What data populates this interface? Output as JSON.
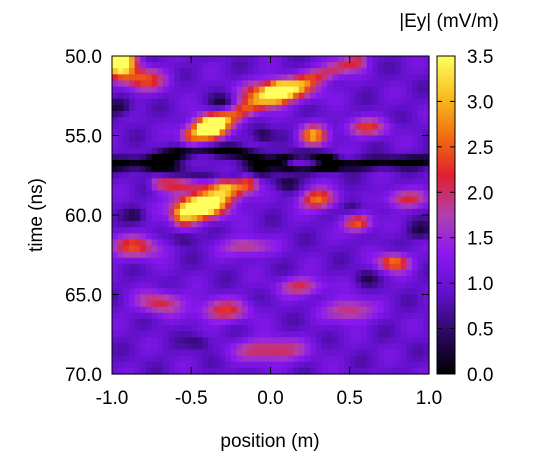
{
  "chart_data": {
    "type": "heatmap",
    "title": "",
    "xlabel": "position (m)",
    "ylabel": "time (ns)",
    "colorbar_label": "|Ey| (mV/m)",
    "xlim": [
      -1.0,
      1.0
    ],
    "ylim": [
      50.0,
      70.0
    ],
    "y_inverted": true,
    "x_ticks": [
      "-1.0",
      "-0.5",
      "0.0",
      "0.5",
      "1.0"
    ],
    "y_ticks": [
      "50.0",
      "55.0",
      "60.0",
      "65.0",
      "70.0"
    ],
    "zlim": [
      0.0,
      3.5
    ],
    "z_ticks": [
      "0.0",
      "0.5",
      "1.0",
      "1.5",
      "2.0",
      "2.5",
      "3.0",
      "3.5"
    ],
    "colormap": [
      "#000000",
      "#2a0860",
      "#6010c8",
      "#8a18f0",
      "#b040b0",
      "#e02030",
      "#f07010",
      "#f8c020",
      "#ffff60"
    ],
    "grid": false,
    "features": [
      {
        "shape": "gaussian",
        "x": -0.95,
        "y": 50.3,
        "sx": 0.07,
        "sy": 0.7,
        "z": 3.3
      },
      {
        "shape": "band",
        "x0": -0.5,
        "y0": 55.0,
        "x1": 0.05,
        "y1": 52.3,
        "width": 0.45,
        "z": 1.55
      },
      {
        "shape": "band",
        "x0": 0.05,
        "y0": 52.3,
        "x1": 0.55,
        "y1": 50.3,
        "width": 0.4,
        "z": 1.2
      },
      {
        "shape": "band",
        "x0": -0.55,
        "y0": 60.0,
        "x1": -0.15,
        "y1": 58.0,
        "width": 0.5,
        "z": 1.75
      },
      {
        "shape": "gaussian",
        "x": -0.38,
        "y": 54.5,
        "sx": 0.07,
        "sy": 0.55,
        "z": 2.4
      },
      {
        "shape": "gaussian",
        "x": -0.45,
        "y": 59.5,
        "sx": 0.12,
        "sy": 0.55,
        "z": 2.0
      },
      {
        "shape": "gaussian",
        "x": 0.27,
        "y": 55.0,
        "sx": 0.06,
        "sy": 0.45,
        "z": 1.9
      },
      {
        "shape": "gaussian",
        "x": 0.05,
        "y": 52.2,
        "sx": 0.15,
        "sy": 0.5,
        "z": 1.7
      },
      {
        "shape": "gaussian",
        "x": 0.3,
        "y": 59.0,
        "sx": 0.08,
        "sy": 0.45,
        "z": 1.7
      },
      {
        "shape": "gaussian",
        "x": 0.55,
        "y": 60.5,
        "sx": 0.06,
        "sy": 0.4,
        "z": 1.7
      },
      {
        "shape": "gaussian",
        "x": 0.78,
        "y": 63.0,
        "sx": 0.07,
        "sy": 0.4,
        "z": 1.8
      },
      {
        "shape": "gaussian",
        "x": -0.85,
        "y": 62.0,
        "sx": 0.12,
        "sy": 0.5,
        "z": 1.35
      },
      {
        "shape": "gaussian",
        "x": -0.8,
        "y": 51.5,
        "sx": 0.1,
        "sy": 0.5,
        "z": 1.4
      },
      {
        "shape": "band",
        "x0": -0.7,
        "y0": 58.0,
        "x1": -0.3,
        "y1": 58.0,
        "width": 0.4,
        "z": 1.2
      },
      {
        "shape": "gaussian",
        "x": 0.0,
        "y": 68.5,
        "sx": 0.15,
        "sy": 0.5,
        "z": 1.3
      },
      {
        "shape": "gaussian",
        "x": -0.3,
        "y": 66.0,
        "sx": 0.12,
        "sy": 0.5,
        "z": 1.2
      },
      {
        "shape": "gaussian",
        "x": -0.7,
        "y": 65.5,
        "sx": 0.1,
        "sy": 0.5,
        "z": 1.2
      },
      {
        "shape": "gaussian",
        "x": 0.5,
        "y": 66.0,
        "sx": 0.1,
        "sy": 0.5,
        "z": 1.2
      },
      {
        "shape": "gaussian",
        "x": 0.2,
        "y": 64.5,
        "sx": 0.1,
        "sy": 0.4,
        "z": 1.15
      },
      {
        "shape": "gaussian",
        "x": -0.15,
        "y": 62.0,
        "sx": 0.1,
        "sy": 0.4,
        "z": 1.15
      },
      {
        "shape": "gaussian",
        "x": 0.6,
        "y": 54.5,
        "sx": 0.1,
        "sy": 0.4,
        "z": 1.2
      },
      {
        "shape": "gaussian",
        "x": 0.85,
        "y": 59.0,
        "sx": 0.1,
        "sy": 0.4,
        "z": 1.15
      },
      {
        "shape": "ring",
        "x": -0.38,
        "y": 56.8,
        "sx": 0.3,
        "sy": 0.9,
        "z": -0.95
      },
      {
        "shape": "ring",
        "x": 0.22,
        "y": 56.7,
        "sx": 0.16,
        "sy": 0.55,
        "z": -0.95
      },
      {
        "shape": "band",
        "x0": 0.35,
        "y0": 56.9,
        "x1": 1.0,
        "y1": 56.6,
        "width": 0.28,
        "z": -0.95
      },
      {
        "shape": "band",
        "x0": -1.0,
        "y0": 56.8,
        "x1": -0.7,
        "y1": 56.7,
        "width": 0.3,
        "z": -0.9
      },
      {
        "shape": "gaussian",
        "x": -0.95,
        "y": 53.2,
        "sx": 0.06,
        "sy": 0.4,
        "z": -0.7
      },
      {
        "shape": "gaussian",
        "x": -0.3,
        "y": 53.0,
        "sx": 0.06,
        "sy": 0.4,
        "z": -0.7
      },
      {
        "shape": "gaussian",
        "x": -0.05,
        "y": 55.0,
        "sx": 0.05,
        "sy": 0.35,
        "z": -0.7
      },
      {
        "shape": "gaussian",
        "x": 0.1,
        "y": 58.0,
        "sx": 0.06,
        "sy": 0.35,
        "z": -0.6
      },
      {
        "shape": "gaussian",
        "x": 0.52,
        "y": 59.5,
        "sx": 0.05,
        "sy": 0.4,
        "z": -0.6
      },
      {
        "shape": "gaussian",
        "x": 0.95,
        "y": 61.0,
        "sx": 0.06,
        "sy": 0.4,
        "z": -0.6
      },
      {
        "shape": "gaussian",
        "x": -0.55,
        "y": 61.5,
        "sx": 0.06,
        "sy": 0.35,
        "z": -0.6
      },
      {
        "shape": "gaussian",
        "x": -0.85,
        "y": 60.0,
        "sx": 0.05,
        "sy": 0.35,
        "z": -0.55
      },
      {
        "shape": "gaussian",
        "x": 0.6,
        "y": 64.0,
        "sx": 0.05,
        "sy": 0.35,
        "z": -0.5
      },
      {
        "shape": "gaussian",
        "x": -0.45,
        "y": 68.0,
        "sx": 0.06,
        "sy": 0.35,
        "z": -0.5
      }
    ]
  }
}
